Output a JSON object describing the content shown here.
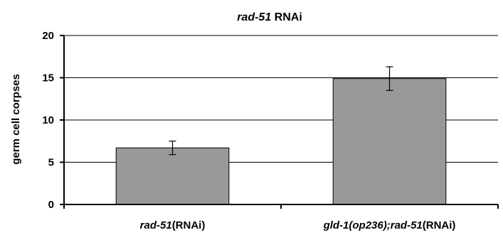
{
  "chart_data": {
    "type": "bar",
    "title": {
      "italic": "rad-51",
      "rest": " RNAi"
    },
    "ylabel": "germ cell corpses",
    "xlabel": "",
    "ylim": [
      0,
      20
    ],
    "yticks": [
      0,
      5,
      10,
      15,
      20
    ],
    "grid": true,
    "categories": [
      {
        "parts": [
          {
            "text": "rad-51",
            "italic": true
          },
          {
            "text": "(RNAi)",
            "italic": false
          }
        ]
      },
      {
        "parts": [
          {
            "text": "gld-1(op236);rad-51",
            "italic": true
          },
          {
            "text": "(RNAi)",
            "italic": false
          }
        ]
      }
    ],
    "series": [
      {
        "values": [
          6.7,
          14.9
        ],
        "error": [
          0.8,
          1.4
        ],
        "color": "#999999"
      }
    ]
  }
}
